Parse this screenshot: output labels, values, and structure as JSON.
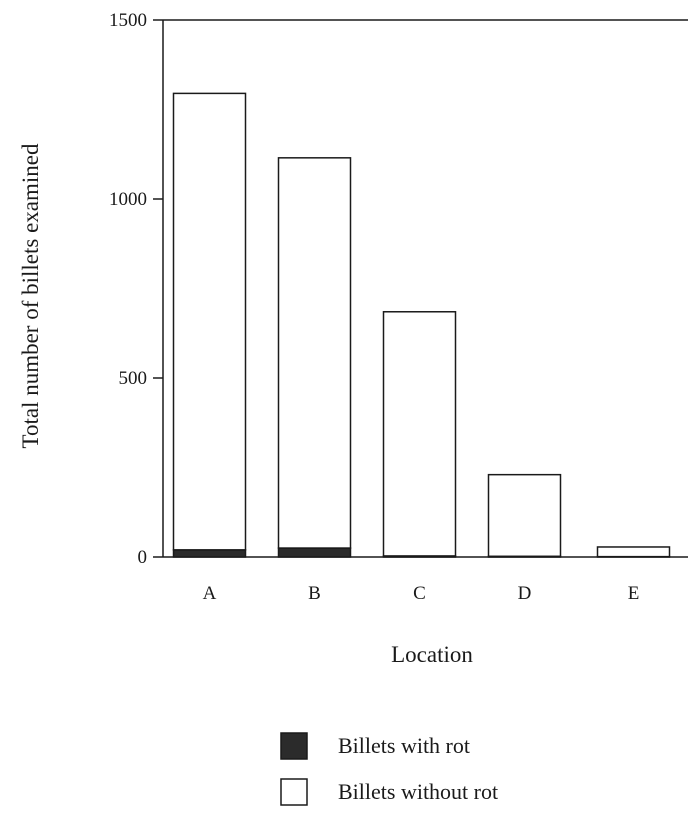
{
  "chart_data": {
    "type": "bar",
    "stacked": true,
    "categories": [
      "A",
      "B",
      "C",
      "D",
      "E"
    ],
    "series": [
      {
        "name": "Billets with rot",
        "color": "#2b2b2b",
        "values": [
          20,
          25,
          3,
          2,
          1
        ]
      },
      {
        "name": "Billets without rot",
        "color": "#ffffff",
        "values": [
          1275,
          1090,
          682,
          228,
          27
        ]
      }
    ],
    "totals": [
      1295,
      1115,
      685,
      230,
      28
    ],
    "xlabel": "Location",
    "ylabel": "Total number of billets examined",
    "ylim": [
      0,
      1500
    ],
    "yticks": [
      0,
      500,
      1000,
      1500
    ],
    "ytick_labels": [
      "0",
      "500",
      "1000",
      "1500"
    ],
    "grid": false,
    "legend_position": "bottom"
  }
}
